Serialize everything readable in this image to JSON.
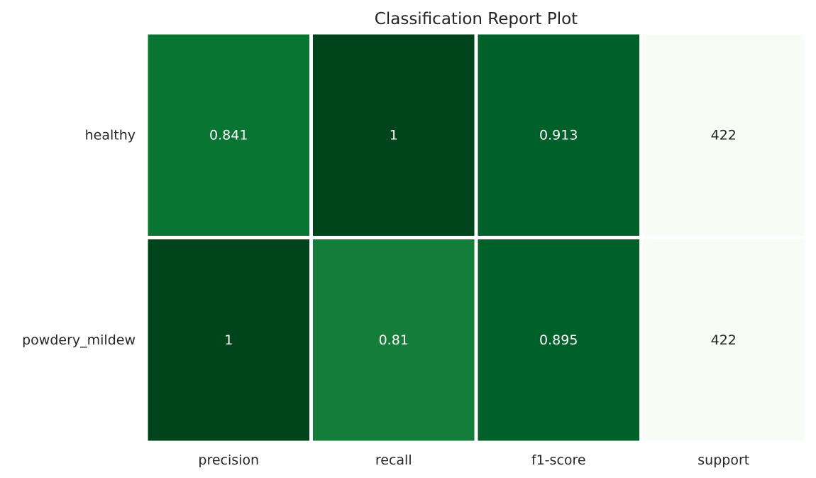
{
  "chart_data": {
    "type": "heatmap",
    "title": "Classification Report Plot",
    "xlabel": "",
    "ylabel": "",
    "columns": [
      "precision",
      "recall",
      "f1-score",
      "support"
    ],
    "rows": [
      "healthy",
      "powdery_mildew"
    ],
    "values": [
      [
        0.841,
        1,
        0.913,
        422
      ],
      [
        1,
        0.81,
        0.895,
        422
      ]
    ],
    "cell_labels": [
      [
        "0.841",
        "1",
        "0.913",
        "422"
      ],
      [
        "1",
        "0.81",
        "0.895",
        "422"
      ]
    ],
    "cell_colors": [
      [
        "#097532",
        "#00441b",
        "#00602a",
        "#f7fcf5"
      ],
      [
        "#00441b",
        "#137d39",
        "#00602a",
        "#f7fcf5"
      ]
    ],
    "colormap": "Greens",
    "grid": false,
    "colorbar": false
  }
}
